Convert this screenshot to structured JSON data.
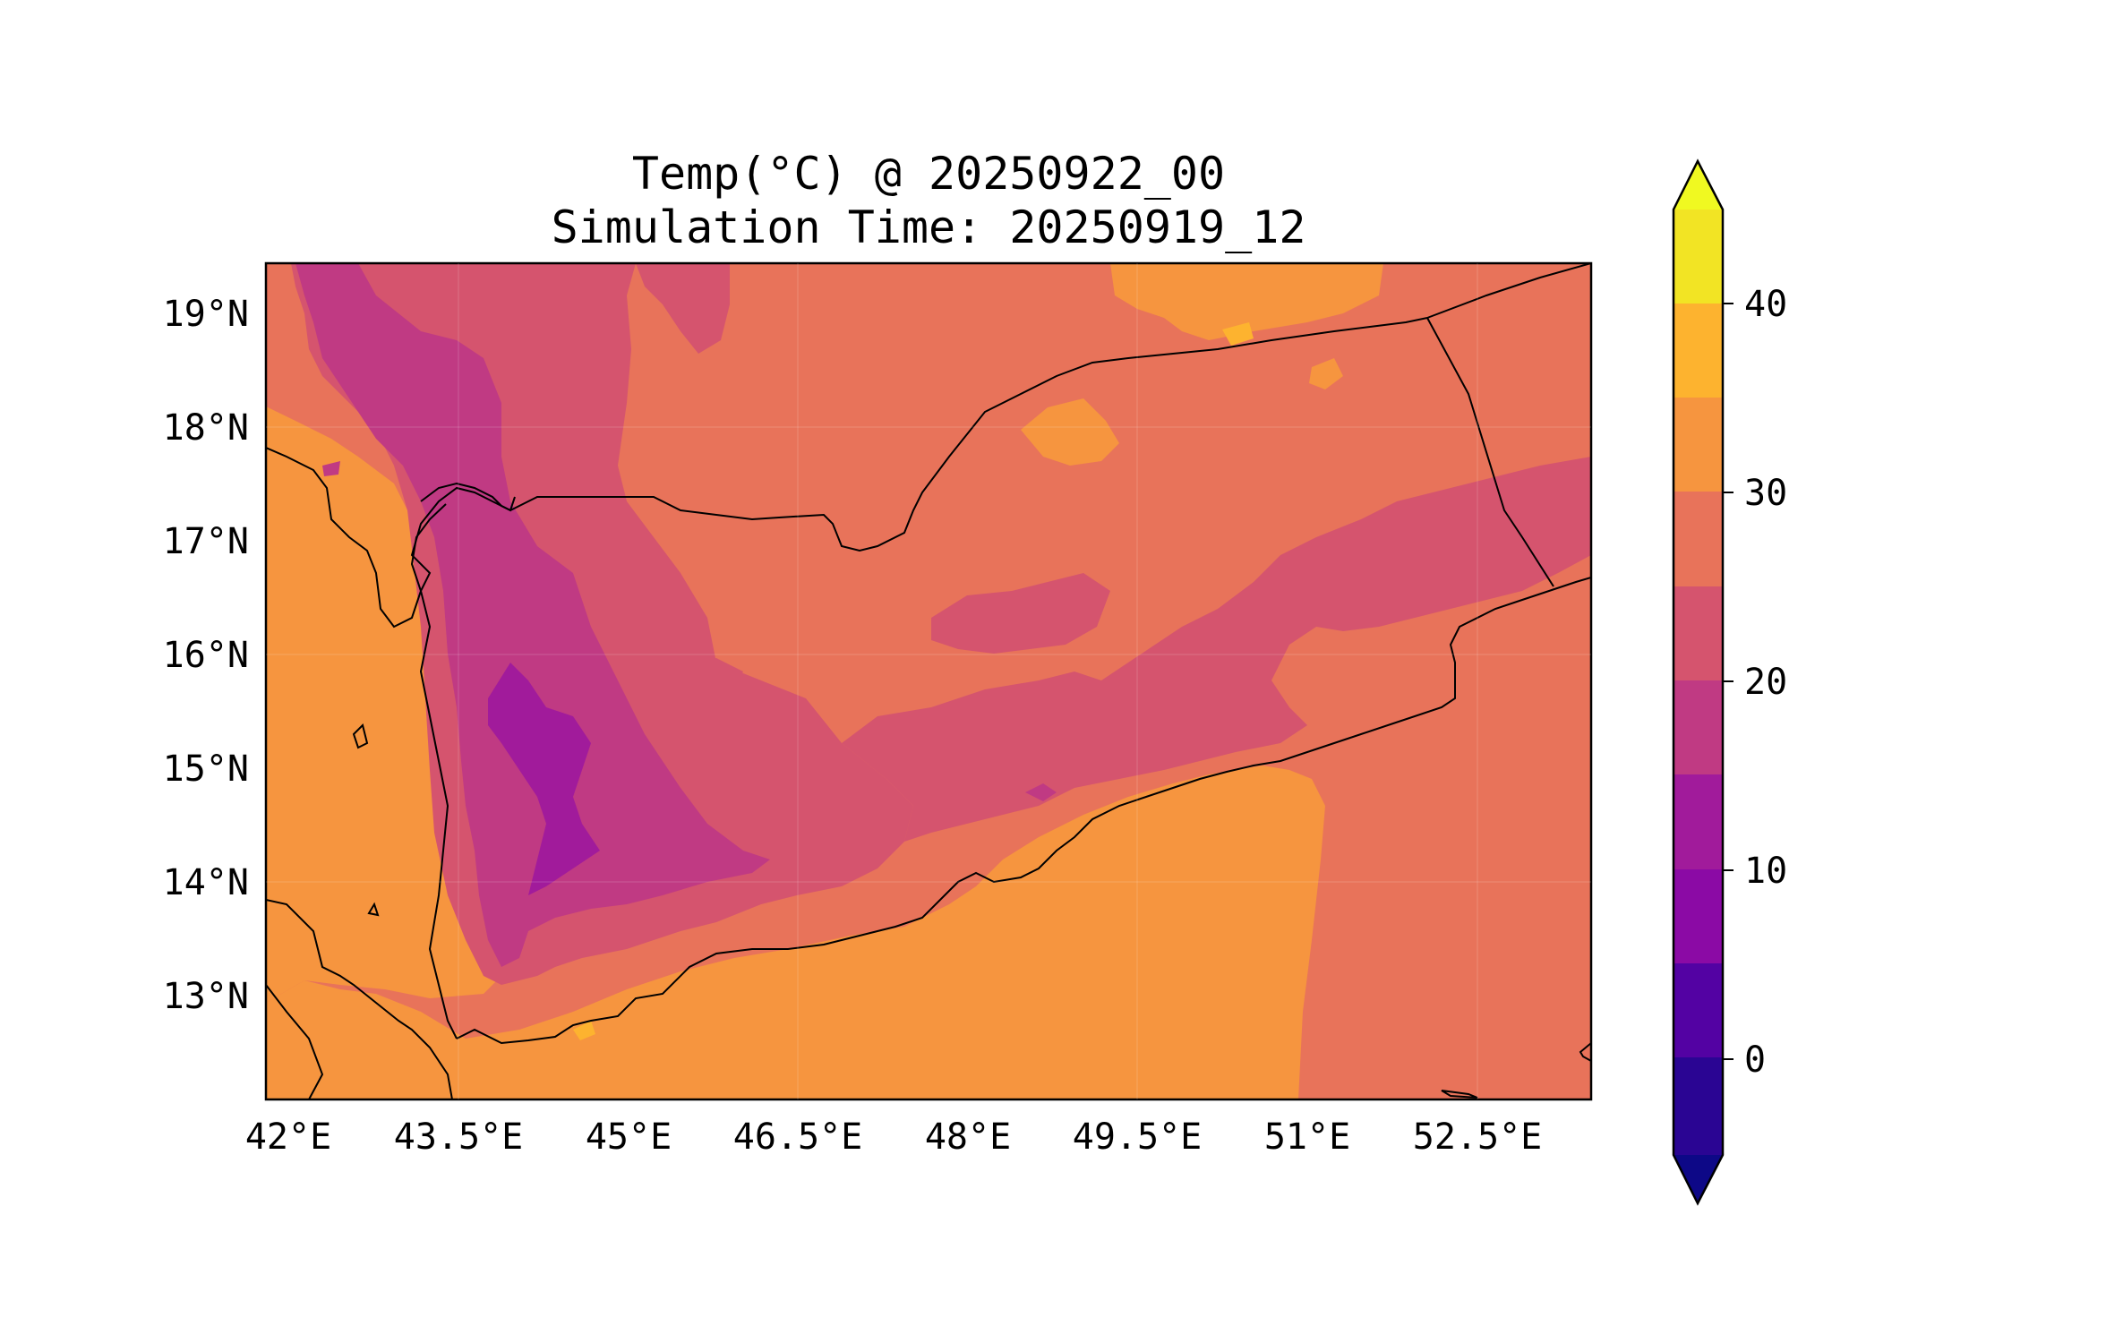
{
  "title": {
    "line1": "Temp(°C) @ 20250922_00",
    "line2": "Simulation Time: 20250919_12"
  },
  "axes": {
    "x_ticks": [
      "42°E",
      "43.5°E",
      "45°E",
      "46.5°E",
      "48°E",
      "49.5°E",
      "51°E",
      "52.5°E"
    ],
    "y_ticks": [
      "19°N",
      "18°N",
      "17°N",
      "16°N",
      "15°N",
      "14°N",
      "13°N"
    ]
  },
  "colorbar": {
    "ticks": [
      "0",
      "10",
      "20",
      "30",
      "40"
    ],
    "levels": [
      -5,
      0,
      5,
      10,
      15,
      20,
      25,
      30,
      35,
      40,
      45
    ],
    "extend": "both",
    "colors": {
      "under": "#0d0887",
      "band_-5_0": "#2a0593",
      "band_0_5": "#5302a3",
      "band_5_10": "#8b0aa5",
      "band_10_15": "#a11b9b",
      "band_15_20": "#c03a83",
      "band_20_25": "#d5546e",
      "band_25_30": "#e8735a",
      "band_30_35": "#f6953f",
      "band_35_40": "#fdb32f",
      "band_40_45": "#f2e424",
      "over": "#f0f921"
    }
  },
  "chart_data": {
    "type": "heatmap",
    "title": "Temp(°C) @ 20250922_00\nSimulation Time: 20250919_12",
    "xlabel": "",
    "ylabel": "",
    "xlim": [
      41.9,
      53.7
    ],
    "ylim": [
      12.1,
      19.45
    ],
    "x_ticks": [
      42,
      43.5,
      45,
      46.5,
      48,
      49.5,
      51,
      52.5
    ],
    "y_ticks": [
      19,
      18,
      17,
      16,
      15,
      14,
      13
    ],
    "colorbar_range": [
      -5,
      45
    ],
    "colorbar_step": 5,
    "value_summary": {
      "highlands_min_approx": 10,
      "highlands_range": [
        10,
        25
      ],
      "interior_plateau_range": [
        25,
        30
      ],
      "coastal_plains_range": [
        30,
        35
      ],
      "northern_desert_range": [
        25,
        35
      ]
    }
  }
}
